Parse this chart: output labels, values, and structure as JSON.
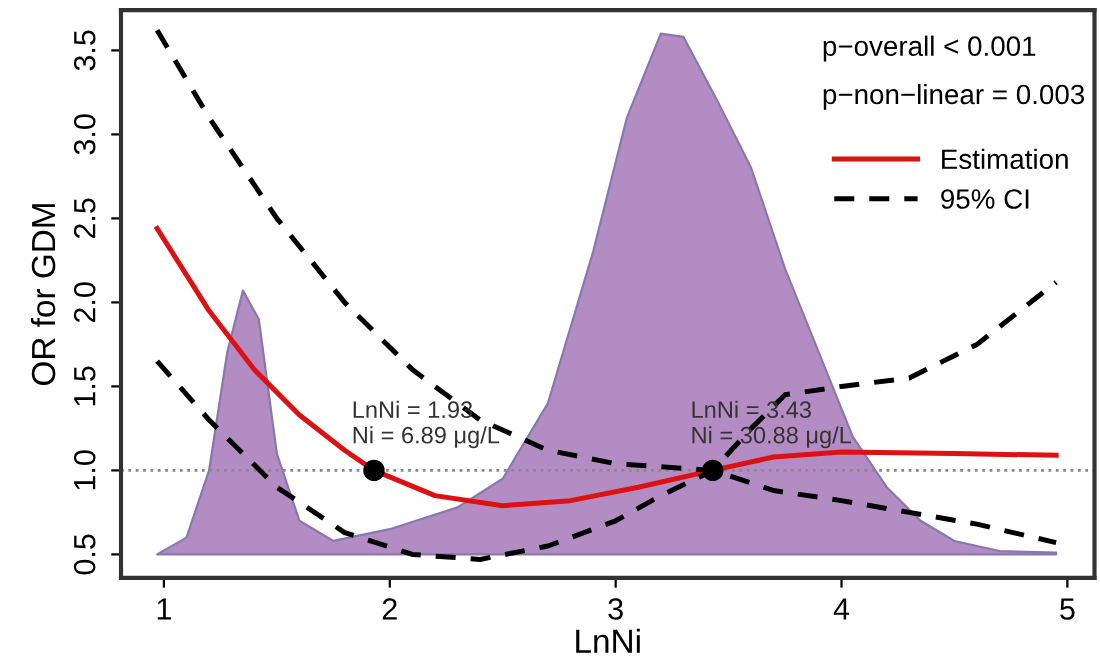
{
  "chart_data": {
    "type": "line",
    "xlabel": "LnNi",
    "ylabel": "OR for GDM",
    "xlim": [
      0.81,
      5.12
    ],
    "ylim": [
      0.36,
      3.74
    ],
    "xticks": [
      1,
      2,
      3,
      4,
      5
    ],
    "yticks": [
      {
        "value": 0.5,
        "label": "0.5"
      },
      {
        "value": 1.0,
        "label": "1.0"
      },
      {
        "value": 1.5,
        "label": "1.5"
      },
      {
        "value": 2.0,
        "label": "2.0"
      },
      {
        "value": 2.5,
        "label": "2.5"
      },
      {
        "value": 3.0,
        "label": "3.0"
      },
      {
        "value": 3.5,
        "label": "3.5"
      }
    ],
    "grid": false,
    "legend": "top right",
    "series": [
      {
        "type": "area",
        "color": "#b48cc4",
        "x": [
          0.97,
          1.1,
          1.2,
          1.28,
          1.35,
          1.42,
          1.5,
          1.6,
          1.75,
          2.0,
          2.3,
          2.5,
          2.7,
          2.9,
          3.05,
          3.2,
          3.3,
          3.45,
          3.6,
          3.75,
          3.9,
          4.05,
          4.2,
          4.35,
          4.5,
          4.7,
          4.95
        ],
        "values": [
          0.5,
          0.6,
          1.0,
          1.7,
          2.07,
          1.9,
          1.1,
          0.7,
          0.58,
          0.65,
          0.78,
          0.95,
          1.4,
          2.3,
          3.1,
          3.6,
          3.58,
          3.2,
          2.8,
          2.2,
          1.7,
          1.2,
          0.9,
          0.7,
          0.58,
          0.52,
          0.51
        ]
      },
      {
        "name": "Estimation",
        "color": "#dd1111",
        "line_style": "solid",
        "x": [
          0.97,
          1.2,
          1.4,
          1.6,
          1.8,
          1.93,
          2.2,
          2.5,
          2.8,
          3.1,
          3.43,
          3.7,
          4.0,
          4.5,
          4.95
        ],
        "values": [
          2.44,
          1.95,
          1.6,
          1.33,
          1.12,
          1.0,
          0.85,
          0.79,
          0.82,
          0.9,
          1.0,
          1.08,
          1.11,
          1.1,
          1.09
        ]
      },
      {
        "name": "95% CI",
        "color": "#000000",
        "line_style": "dashed",
        "x": [
          0.97,
          1.2,
          1.5,
          1.8,
          2.1,
          2.4,
          2.7,
          3.0,
          3.43,
          3.7,
          4.0,
          4.3,
          4.6,
          4.95
        ],
        "values": [
          3.62,
          3.1,
          2.5,
          2.0,
          1.6,
          1.3,
          1.12,
          1.04,
          1.0,
          0.88,
          0.82,
          0.75,
          0.68,
          0.57
        ]
      },
      {
        "color": "#000000",
        "line_style": "dashed",
        "x": [
          0.97,
          1.2,
          1.5,
          1.8,
          2.1,
          2.4,
          2.7,
          3.0,
          3.2,
          3.43,
          3.6,
          3.75,
          4.0,
          4.3,
          4.6,
          4.95
        ],
        "values": [
          1.65,
          1.3,
          0.9,
          0.63,
          0.5,
          0.47,
          0.55,
          0.7,
          0.85,
          1.0,
          1.25,
          1.45,
          1.5,
          1.55,
          1.75,
          2.12
        ]
      },
      {
        "type": "scatter",
        "color": "#000000",
        "marker": "circle",
        "x": [
          1.93,
          3.43
        ],
        "values": [
          1.0,
          1.0
        ]
      }
    ],
    "ref_lines": [
      {
        "axis": "y",
        "value": 1.0,
        "color": "#888888",
        "line_style": "dotted"
      }
    ],
    "annotations": [
      {
        "text": "LnNi = 1.93\nNi = 6.89 μg/L",
        "x": 1.93,
        "y": 1.0
      },
      {
        "text": "LnNi = 3.43\nNi = 30.88 μg/L",
        "x": 3.43,
        "y": 1.0
      },
      "p−overall < 0.001",
      "p−non−linear = 0.003"
    ]
  }
}
